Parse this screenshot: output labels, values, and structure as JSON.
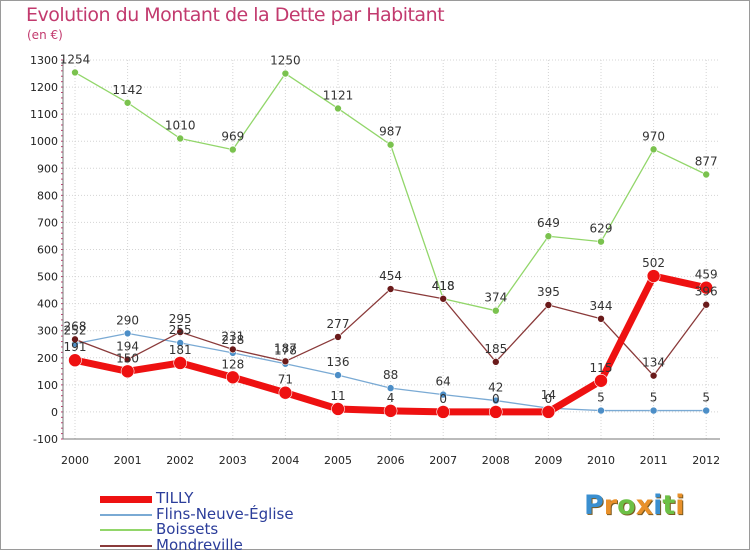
{
  "title": "Evolution du Montant de la Dette par Habitant",
  "unit_label": "(en €)",
  "logo": {
    "text": "Proxiti",
    "letters": [
      {
        "ch": "P",
        "color": "#3a8fd0"
      },
      {
        "ch": "r",
        "color": "#e8902a"
      },
      {
        "ch": "o",
        "color": "#6cc046"
      },
      {
        "ch": "x",
        "color": "#e8902a"
      },
      {
        "ch": "i",
        "color": "#3a8fd0"
      },
      {
        "ch": "t",
        "color": "#6cc046"
      },
      {
        "ch": "i",
        "color": "#e8902a"
      }
    ]
  },
  "chart_data": {
    "type": "line",
    "title": "Evolution du Montant de la Dette par Habitant",
    "ylabel": "(en €)",
    "xlabel": "",
    "x": [
      "2000",
      "2001",
      "2002",
      "2003",
      "2004",
      "2005",
      "2006",
      "2007",
      "2008",
      "2009",
      "2010",
      "2011",
      "2012"
    ],
    "ylim": [
      -100,
      1300
    ],
    "yticks": [
      -100,
      0,
      100,
      200,
      300,
      400,
      500,
      600,
      700,
      800,
      900,
      1000,
      1100,
      1200,
      1300
    ],
    "grid": true,
    "legend_position": "bottom-left",
    "series": [
      {
        "name": "Boissets",
        "color": "#92d66a",
        "width": 1.3,
        "marker": 3.5,
        "marker_color": "#7ac24e",
        "values": [
          1254,
          1142,
          1010,
          969,
          1250,
          1121,
          987,
          418,
          374,
          649,
          629,
          970,
          877
        ],
        "labels": [
          "1254",
          "1142",
          "1010",
          "969",
          "1250",
          "1121",
          "987",
          "418",
          "374",
          "649",
          "629",
          "970",
          "877"
        ]
      },
      {
        "name": "Flins-Neuve-Église",
        "color": "#7aaad4",
        "width": 1.3,
        "marker": 3.5,
        "marker_color": "#4c8ec7",
        "values": [
          252,
          290,
          255,
          218,
          178,
          136,
          88,
          64,
          42,
          14,
          5,
          5,
          5
        ],
        "labels": [
          "252",
          "290",
          "255",
          "218",
          "178",
          "136",
          "88",
          "64",
          "42",
          "14",
          "5",
          "5",
          "5"
        ]
      },
      {
        "name": "Mondreville",
        "color": "#8a3a3a",
        "width": 1.3,
        "marker": 3.5,
        "marker_color": "#6a1a1a",
        "values": [
          268,
          194,
          295,
          231,
          187,
          277,
          454,
          418,
          185,
          395,
          344,
          134,
          396
        ],
        "labels": [
          "268",
          "194",
          "295",
          "231",
          "187",
          "277",
          "454",
          "418",
          "185",
          "395",
          "344",
          "134",
          "396"
        ]
      },
      {
        "name": "TILLY",
        "color": "#ee1111",
        "width": 7,
        "marker": 6.5,
        "marker_color": "#ee1111",
        "values": [
          191,
          150,
          181,
          128,
          71,
          11,
          4,
          0,
          0,
          0,
          115,
          502,
          459
        ],
        "labels": [
          "191",
          "150",
          "181",
          "128",
          "71",
          "11",
          "4",
          "0",
          "0",
          "0",
          "115",
          "502",
          "459"
        ]
      }
    ]
  },
  "legend": [
    {
      "label": "TILLY",
      "color": "#ee1111",
      "thickness": 7
    },
    {
      "label": "Flins-Neuve-Église",
      "color": "#7aaad4",
      "thickness": 2
    },
    {
      "label": "Boissets",
      "color": "#92d66a",
      "thickness": 2
    },
    {
      "label": "Mondreville",
      "color": "#8a3a3a",
      "thickness": 2
    }
  ]
}
